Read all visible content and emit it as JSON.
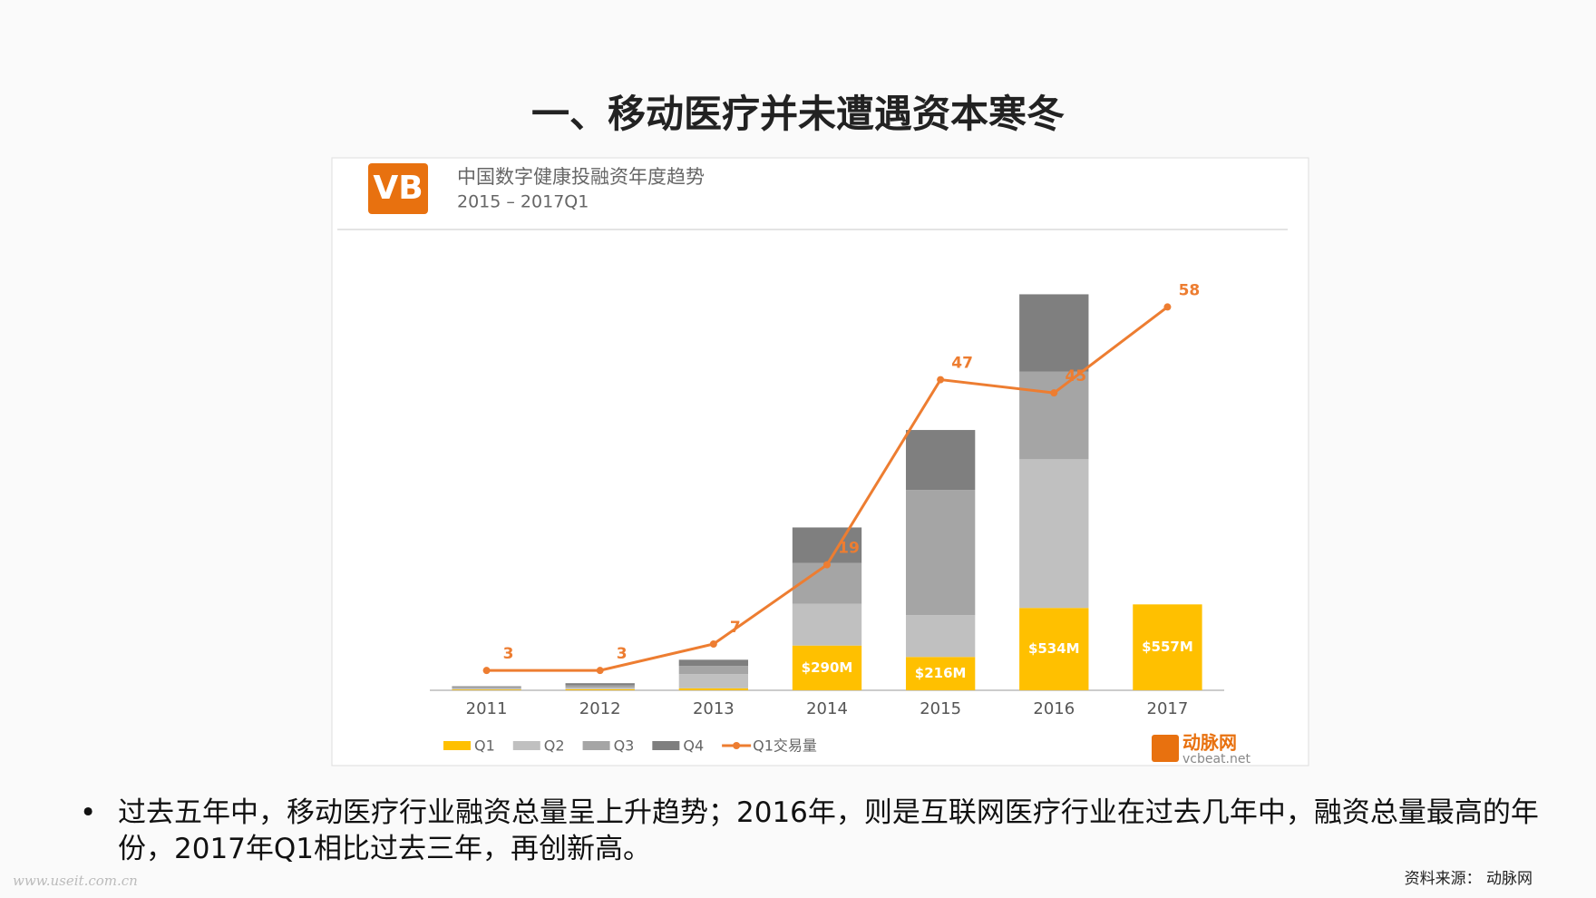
{
  "slide_title": "一、移动医疗并未遭遇资本寒冬",
  "chart_data": {
    "type": "bar",
    "stacked": true,
    "title": "中国数字健康投融资年度趋势",
    "subtitle": "2015 – 2017Q1",
    "logo": "VB",
    "brand": "动脉网",
    "brand_url": "vcbeat.net",
    "categories": [
      "2011",
      "2012",
      "2013",
      "2014",
      "2015",
      "2016",
      "2017"
    ],
    "series": [
      {
        "name": "Q1",
        "color": "#ffc000",
        "values": [
          5,
          7,
          13,
          290,
          216,
          534,
          557
        ],
        "value_labels": [
          null,
          null,
          null,
          "$290M",
          "$216M",
          "$534M",
          "$557M"
        ]
      },
      {
        "name": "Q2",
        "color": "#c0c0c0",
        "values": [
          8,
          10,
          92,
          271,
          271,
          964,
          null
        ]
      },
      {
        "name": "Q3",
        "color": "#a5a5a5",
        "values": [
          8,
          15,
          53,
          264,
          812,
          568,
          null
        ]
      },
      {
        "name": "Q4",
        "color": "#7f7f7f",
        "values": [
          5,
          14,
          40,
          231,
          389,
          502,
          null
        ]
      },
      {
        "name": "Q1交易量",
        "type": "line",
        "axis": "y2",
        "color": "#ed7d31",
        "values": [
          3,
          3,
          7,
          19,
          47,
          45,
          58
        ]
      }
    ],
    "ylim": [
      0,
      3000
    ],
    "y2lim": [
      0,
      70
    ],
    "legend": "bottom-left"
  },
  "bullet": "过去五年中，移动医疗行业融资总量呈上升趋势；2016年，则是互联网医疗行业在过去几年中，融资总量最高的年份，2017年Q1相比过去三年，再创新高。",
  "source": "资料来源：  动脉网",
  "watermark": "www.useit.com.cn"
}
